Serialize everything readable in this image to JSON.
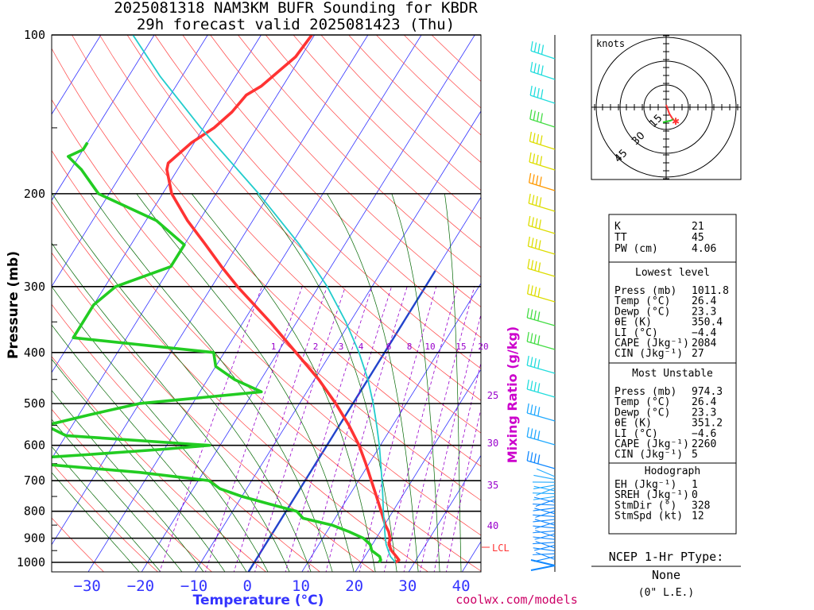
{
  "header": {
    "line1": "2025081318 NAM3KM BUFR Sounding for KBDR",
    "line2": "29h forecast valid 2025081423 (Thu)"
  },
  "credit": "coolwx.com/models",
  "axes": {
    "pressure_label": "Pressure (mb)",
    "temperature_label": "Temperature (°C)",
    "mixing_ratio_label": "Mixing Ratio (g/kg)",
    "lcl_label": "LCL"
  },
  "colors": {
    "temperature": "#ff3333",
    "dewpoint": "#22cc22",
    "parcel": "#22cccc",
    "isotherm": "#3333ff",
    "freezing_line": "#2244cc",
    "dry_adiabat": "#ff4444",
    "moist_adiabat": "#006600",
    "mixing_ratio": "#9900cc"
  },
  "chart_data": {
    "type": "line",
    "title": "2025081318 NAM3KM BUFR Sounding for KBDR",
    "subtitle": "29h forecast valid 2025081423 (Thu)",
    "xlabel": "Temperature (°C)",
    "ylabel": "Pressure (mb)",
    "x_ticks": [
      "−30",
      "−20",
      "−10",
      "0",
      "10",
      "20",
      "30",
      "40"
    ],
    "y_ticks": [
      "100",
      "200",
      "300",
      "400",
      "500",
      "600",
      "700",
      "800",
      "900",
      "1000"
    ],
    "y_scale": "log",
    "ylim": [
      1050,
      100
    ],
    "skew": true,
    "mixing_ratio_lines": [
      "1",
      "2",
      "3",
      "4",
      "6",
      "8",
      "10",
      "15",
      "20",
      "25",
      "30",
      "35",
      "40"
    ],
    "series": [
      {
        "name": "Temperature",
        "pressure": [
          1000,
          990,
          975,
          950,
          925,
          900,
          875,
          850,
          800,
          750,
          700,
          650,
          600,
          550,
          500,
          450,
          400,
          350,
          300,
          275,
          250,
          225,
          200,
          180,
          175,
          160,
          150,
          140,
          130,
          125,
          110,
          100
        ],
        "values": [
          26.4,
          26.8,
          25.9,
          24.3,
          23.1,
          22.6,
          21.6,
          20.2,
          17.8,
          15.2,
          12.4,
          9.4,
          6.0,
          1.8,
          -3.2,
          -9.2,
          -16.6,
          -25.0,
          -35.2,
          -40.5,
          -46.0,
          -52.2,
          -58.3,
          -62.0,
          -62.5,
          -60.5,
          -58.0,
          -56.5,
          -55.8,
          -54.0,
          -51.0,
          -50.5
        ]
      },
      {
        "name": "Dewpoint",
        "pressure": [
          1000,
          990,
          975,
          950,
          925,
          900,
          875,
          850,
          825,
          800,
          775,
          750,
          725,
          700,
          675,
          650,
          640,
          625,
          610,
          600,
          575,
          550,
          525,
          500,
          475,
          450,
          425,
          400,
          375,
          350,
          325,
          300,
          275,
          250,
          225,
          200,
          180,
          170,
          165,
          160
        ],
        "values": [
          23.3,
          23.4,
          22.8,
          20.6,
          19.6,
          17.6,
          14.2,
          10.2,
          4.0,
          2.0,
          -4.0,
          -10.0,
          -15.0,
          -18.0,
          -32.0,
          -52.0,
          -59.0,
          -44.0,
          -30.0,
          -22.0,
          -50.0,
          -55.0,
          -48.0,
          -40.0,
          -18.5,
          -25.0,
          -30.0,
          -32.0,
          -60.0,
          -60.0,
          -60.0,
          -58.0,
          -50.0,
          -50.0,
          -58.0,
          -72.0,
          -78.0,
          -82.0,
          -80.0,
          -80.0
        ]
      },
      {
        "name": "Parcel",
        "pressure": [
          1000,
          975,
          950,
          925,
          900,
          850,
          800,
          750,
          700,
          650,
          600,
          550,
          500,
          450,
          400,
          350,
          300,
          250,
          200,
          150,
          120,
          100
        ],
        "values": [
          26.4,
          24.8,
          23.7,
          22.6,
          21.7,
          20.0,
          18.2,
          16.4,
          14.4,
          12.2,
          9.8,
          7.0,
          3.8,
          0.0,
          -4.8,
          -10.8,
          -18.4,
          -28.4,
          -42.0,
          -60.5,
          -74.0,
          -84.0
        ]
      }
    ]
  },
  "wind_barbs": {
    "description_colors_by_level": [
      "cyan",
      "cyan",
      "cyan",
      "lime",
      "yellow",
      "yellow",
      "orange",
      "yellow",
      "yellow",
      "yellow",
      "yellow",
      "yellow",
      "lime",
      "lime",
      "cyan",
      "cyan",
      "sky",
      "sky",
      "blue"
    ]
  },
  "hodograph": {
    "units_label": "knots",
    "ring_labels": [
      "15",
      "30",
      "45"
    ]
  },
  "indices": {
    "top": [
      {
        "label": "K",
        "value": "21"
      },
      {
        "label": "TT",
        "value": "45"
      },
      {
        "label": "PW (cm)",
        "value": "4.06"
      }
    ],
    "lowest_level": {
      "heading": "Lowest level",
      "rows": [
        {
          "label": "Press (mb)",
          "value": "1011.8"
        },
        {
          "label": "Temp (°C)",
          "value": "26.4"
        },
        {
          "label": "Dewp (°C)",
          "value": "23.3"
        },
        {
          "label": "θE (K)",
          "value": "350.4"
        },
        {
          "label": "LI (°C)",
          "value": "−4.4"
        },
        {
          "label": "CAPE (Jkg⁻¹)",
          "value": "2084"
        },
        {
          "label": "CIN (Jkg⁻¹)",
          "value": "27"
        }
      ]
    },
    "most_unstable": {
      "heading": "Most Unstable",
      "rows": [
        {
          "label": "Press (mb)",
          "value": "974.3"
        },
        {
          "label": "Temp (°C)",
          "value": "26.4"
        },
        {
          "label": "Dewp (°C)",
          "value": "23.3"
        },
        {
          "label": "θE (K)",
          "value": "351.2"
        },
        {
          "label": "LI (°C)",
          "value": "−4.6"
        },
        {
          "label": "CAPE (Jkg⁻¹)",
          "value": "2260"
        },
        {
          "label": "CIN (Jkg⁻¹)",
          "value": "5"
        }
      ]
    },
    "hodograph": {
      "heading": "Hodograph",
      "rows": [
        {
          "label": "EH (Jkg⁻¹)",
          "value": "1"
        },
        {
          "label": "SREH (Jkg⁻¹)",
          "value": "0"
        },
        {
          "label": "StmDir (°)",
          "value": "328"
        },
        {
          "label": "StmSpd (kt)",
          "value": "12"
        }
      ]
    }
  },
  "ptype": {
    "title": "NCEP 1-Hr PType:",
    "value": "None",
    "amount": "(0\" L.E.)"
  }
}
